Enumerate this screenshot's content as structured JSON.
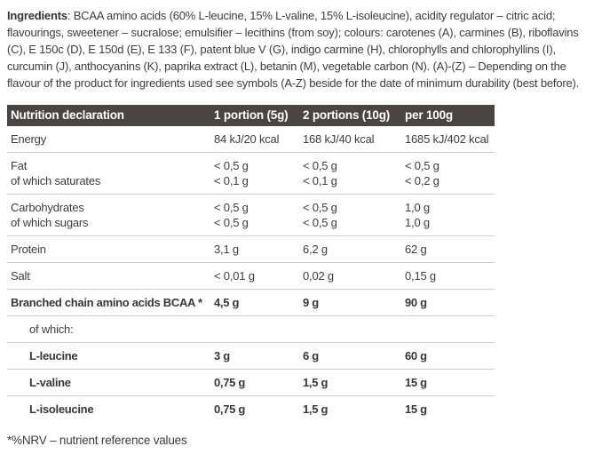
{
  "colors": {
    "header_bg": "#4a4543",
    "header_text": "#ffffff",
    "body_text": "#3d3d3d",
    "divider": "#cccccc",
    "page_bg": "#ffffff"
  },
  "ingredients": {
    "label": "Ingredients",
    "text": ": BCAA amino acids (60% L-leucine, 15% L-valine, 15% L-isoleucine), acidity regulator – citric acid; flavourings, sweetener – sucralose; emulsifier – lecithins (from soy); colours: carotenes (A), carmines (B), riboflavins (C), E 150c (D), E 150d (E), E 133 (F), patent blue V (G), indigo carmine (H), chlorophylls and chlorophyllins (I), curcumin (J), anthocyanins (K), paprika extract (L), betanin (M), vegetable carbon (N). (A)-(Z) – Depending on the flavour of the product for ingredients used see symbols (A-Z) beside for the date of minimum durability (best before)."
  },
  "table": {
    "headers": [
      "Nutrition declaration",
      "1 portion (5g)",
      "2 portions (10g)",
      "per 100g"
    ],
    "rows": [
      {
        "bold": false,
        "indent": false,
        "cells": [
          [
            "Energy"
          ],
          [
            "84 kJ/20 kcal"
          ],
          [
            "168 kJ/40 kcal"
          ],
          [
            "1685 kJ/402 kcal"
          ]
        ]
      },
      {
        "bold": false,
        "indent": false,
        "cells": [
          [
            "Fat",
            "of which saturates"
          ],
          [
            "< 0,5 g",
            "< 0,1 g"
          ],
          [
            "< 0,5 g",
            "< 0,1 g"
          ],
          [
            "< 0,5 g",
            "< 0,2 g"
          ]
        ]
      },
      {
        "bold": false,
        "indent": false,
        "cells": [
          [
            "Carbohydrates",
            "of which sugars"
          ],
          [
            "< 0,5 g",
            "< 0,5 g"
          ],
          [
            "< 0,5 g",
            "< 0,5 g"
          ],
          [
            "1,0 g",
            "1,0 g"
          ]
        ]
      },
      {
        "bold": false,
        "indent": false,
        "cells": [
          [
            "Protein"
          ],
          [
            "3,1 g"
          ],
          [
            "6,2 g"
          ],
          [
            "62 g"
          ]
        ]
      },
      {
        "bold": false,
        "indent": false,
        "cells": [
          [
            "Salt"
          ],
          [
            "< 0,01 g"
          ],
          [
            "0,02 g"
          ],
          [
            "0,15 g"
          ]
        ]
      },
      {
        "bold": true,
        "indent": false,
        "cells": [
          [
            "Branched chain amino acids BCAA *"
          ],
          [
            "4,5 g"
          ],
          [
            "9 g"
          ],
          [
            "90 g"
          ]
        ]
      },
      {
        "bold": false,
        "indent": true,
        "cells": [
          [
            "of which:"
          ],
          [],
          [],
          []
        ]
      },
      {
        "bold": true,
        "indent": true,
        "cells": [
          [
            "L-leucine"
          ],
          [
            "3 g"
          ],
          [
            "6 g"
          ],
          [
            "60 g"
          ]
        ]
      },
      {
        "bold": true,
        "indent": true,
        "cells": [
          [
            "L-valine"
          ],
          [
            "0,75 g"
          ],
          [
            "1,5 g"
          ],
          [
            "15 g"
          ]
        ]
      },
      {
        "bold": true,
        "indent": true,
        "cells": [
          [
            "L-isoleucine"
          ],
          [
            "0,75 g"
          ],
          [
            "1,5 g"
          ],
          [
            "15 g"
          ]
        ]
      }
    ]
  },
  "footnote": "*%NRV – nutrient reference values"
}
